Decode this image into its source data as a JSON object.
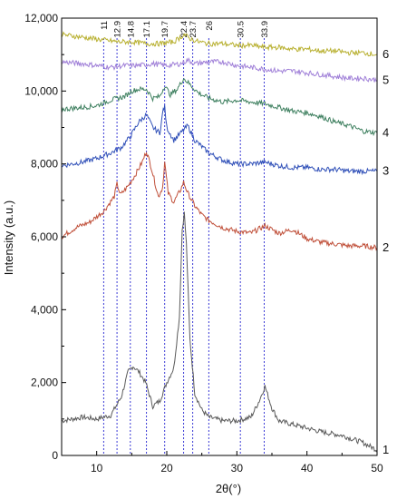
{
  "chart_data": {
    "type": "line",
    "title": "",
    "xlabel": "2θ(°)",
    "ylabel": "Intensity (a.u.)",
    "xlim": [
      5,
      50
    ],
    "ylim": [
      0,
      12000
    ],
    "x_ticks": [
      10,
      20,
      30,
      40,
      50
    ],
    "x_tick_labels": [
      "10",
      "20",
      "30",
      "40",
      "50"
    ],
    "y_ticks": [
      0,
      2000,
      4000,
      6000,
      8000,
      10000,
      12000
    ],
    "y_tick_labels": [
      "0",
      "2,000",
      "4,000",
      "6,000",
      "8,000",
      "10,000",
      "12,000"
    ],
    "grid": false,
    "reference_lines": [
      {
        "x": 11.0,
        "label": "11"
      },
      {
        "x": 12.9,
        "label": "12.9"
      },
      {
        "x": 14.8,
        "label": "14.8"
      },
      {
        "x": 17.1,
        "label": "17.1"
      },
      {
        "x": 19.7,
        "label": "19.7"
      },
      {
        "x": 22.4,
        "label": "22.4"
      },
      {
        "x": 23.7,
        "label": "23.7"
      },
      {
        "x": 26.0,
        "label": "26"
      },
      {
        "x": 30.5,
        "label": "30.5"
      },
      {
        "x": 33.9,
        "label": "33.9"
      }
    ],
    "series": [
      {
        "label": "1",
        "color": "#5a5a5a",
        "x": [
          5,
          8,
          10,
          12,
          13.5,
          14.5,
          15.2,
          16.0,
          17.0,
          18.0,
          19.0,
          20.0,
          21.0,
          21.8,
          22.2,
          22.5,
          22.8,
          23.3,
          24.0,
          25.0,
          26.0,
          28.0,
          30.0,
          32.0,
          33.2,
          34.0,
          35.0,
          36.0,
          38.0,
          40.0,
          42.0,
          45.0,
          48.0,
          50.0
        ],
        "y": [
          950,
          1050,
          1000,
          1100,
          1600,
          2300,
          2450,
          2300,
          2000,
          1350,
          1500,
          2000,
          2400,
          3800,
          6200,
          6650,
          5800,
          3200,
          1700,
          1250,
          1050,
          950,
          950,
          1050,
          1500,
          1900,
          1300,
          950,
          850,
          750,
          650,
          550,
          350,
          150
        ]
      },
      {
        "label": "2",
        "color": "#c0503a",
        "x": [
          5,
          7,
          9,
          11,
          12.5,
          12.9,
          13.4,
          14.5,
          15.5,
          16.5,
          17.1,
          17.8,
          18.8,
          19.4,
          19.7,
          20.2,
          21.0,
          22.0,
          22.4,
          23.0,
          24.0,
          25.0,
          26.0,
          28.0,
          30.0,
          32.0,
          34.0,
          36.0,
          38.0,
          40.0,
          42.0,
          44.0,
          46.0,
          48.0,
          50.0
        ],
        "y": [
          6000,
          6250,
          6400,
          6700,
          7100,
          7450,
          7150,
          7400,
          7700,
          8050,
          8350,
          7900,
          7100,
          7350,
          8050,
          7200,
          6950,
          7300,
          7500,
          7200,
          6850,
          6600,
          6450,
          6250,
          6150,
          6100,
          6300,
          6100,
          6200,
          5950,
          5850,
          5800,
          5750,
          5750,
          5700
        ]
      },
      {
        "label": "3",
        "color": "#3050b8",
        "x": [
          5,
          8,
          10,
          12,
          13.5,
          14.8,
          16.0,
          17.1,
          18.0,
          19.0,
          19.5,
          19.7,
          20.0,
          21.0,
          22.0,
          23.0,
          24.0,
          26.0,
          28.0,
          30.0,
          32.0,
          34.0,
          36.0,
          38.0,
          40.0,
          42.0,
          44.0,
          46.0,
          48.0,
          50.0
        ],
        "y": [
          7950,
          8050,
          8150,
          8300,
          8450,
          8750,
          9150,
          9350,
          9000,
          8850,
          9500,
          9550,
          9000,
          8650,
          8850,
          9050,
          8650,
          8300,
          8100,
          8000,
          8000,
          8050,
          7950,
          7900,
          7900,
          7850,
          7850,
          7800,
          7800,
          7800
        ]
      },
      {
        "label": "4",
        "color": "#3f8060",
        "x": [
          5,
          8,
          10,
          12,
          14,
          15.0,
          16.0,
          17.1,
          18.0,
          19.0,
          19.7,
          20.5,
          21.5,
          22.4,
          23.2,
          24.5,
          26.0,
          28.0,
          30.0,
          32.0,
          34.0,
          36.0,
          38.0,
          40.0,
          42.0,
          44.0,
          46.0,
          48.0,
          50.0
        ],
        "y": [
          9500,
          9550,
          9600,
          9750,
          9850,
          10000,
          10050,
          10050,
          9800,
          9850,
          10150,
          9900,
          10050,
          10350,
          10200,
          9950,
          9800,
          9700,
          9750,
          9700,
          9650,
          9550,
          9450,
          9400,
          9300,
          9150,
          9050,
          8900,
          8850
        ]
      },
      {
        "label": "5",
        "color": "#a080d8",
        "x": [
          5,
          8,
          10,
          12,
          14,
          16,
          18,
          20,
          22,
          23.0,
          24,
          26,
          28,
          30,
          32,
          34,
          36,
          38,
          40,
          42,
          44,
          46,
          48,
          50
        ],
        "y": [
          10800,
          10750,
          10700,
          10650,
          10700,
          10700,
          10750,
          10700,
          10750,
          10850,
          10750,
          10800,
          10800,
          10700,
          10650,
          10600,
          10550,
          10550,
          10500,
          10450,
          10400,
          10350,
          10350,
          10300
        ]
      },
      {
        "label": "6",
        "color": "#b8b030",
        "x": [
          5,
          7,
          9,
          11,
          13,
          15,
          17,
          19,
          21,
          22.5,
          23.2,
          24.5,
          26,
          28,
          30,
          32,
          34,
          36,
          38,
          40,
          42,
          44,
          46,
          48,
          50
        ],
        "y": [
          11550,
          11500,
          11450,
          11400,
          11350,
          11350,
          11300,
          11300,
          11350,
          11550,
          11450,
          11350,
          11300,
          11300,
          11250,
          11250,
          11200,
          11200,
          11150,
          11150,
          11100,
          11100,
          11050,
          11050,
          11000
        ]
      }
    ]
  }
}
